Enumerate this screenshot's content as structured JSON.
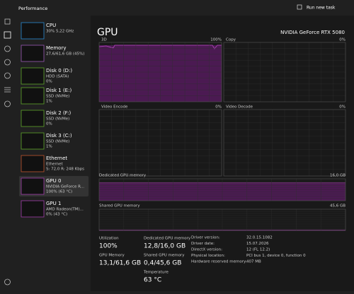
{
  "header": {
    "title": "Performance",
    "action": "Run new task"
  },
  "sidebar": [
    {
      "name": "CPU",
      "line1": "30% 5,22 GHz",
      "line2": null
    },
    {
      "name": "Memory",
      "line1": "27,6/61,6 GB (45%)",
      "line2": null
    },
    {
      "name": "Disk 0 (D:)",
      "line1": "HDD (SATA)",
      "line2": "0%"
    },
    {
      "name": "Disk 1 (E:)",
      "line1": "SSD (NVMe)",
      "line2": "1%"
    },
    {
      "name": "Disk 2 (F:)",
      "line1": "SSD (NVMe)",
      "line2": "0%"
    },
    {
      "name": "Disk 3 (C:)",
      "line1": "SSD (NVMe)",
      "line2": "1%"
    },
    {
      "name": "Ethernet",
      "line1": "Ethernet",
      "line2": "S: 72,0 R: 248 Kbps"
    },
    {
      "name": "GPU 0",
      "line1": "NVIDIA GeForce R...",
      "line2": "100% (63 °C)"
    },
    {
      "name": "GPU 1",
      "line1": "AMD Radeon(TM)...",
      "line2": "0% (43 °C)"
    }
  ],
  "main": {
    "title": "GPU",
    "device": "NVIDIA GeForce RTX 5080",
    "graphs": [
      {
        "label": "3D",
        "max": "100%"
      },
      {
        "label": "Copy",
        "max": "0%"
      },
      {
        "label": "Video Encode",
        "max": "0%"
      },
      {
        "label": "Video Decode",
        "max": "0%"
      }
    ],
    "dedicated": {
      "label": "Dedicated GPU memory",
      "max": "16,0 GB"
    },
    "shared": {
      "label": "Shared GPU memory",
      "max": "45,6 GB"
    },
    "stats": [
      {
        "label": "Utilization",
        "value": "100%"
      },
      {
        "label": "GPU Memory",
        "value": "13,1/61,6 GB"
      },
      {
        "label": "Dedicated GPU memory",
        "value": "12,8/16,0 GB"
      },
      {
        "label": "Shared GPU memory",
        "value": "0,4/45,6 GB"
      },
      {
        "label": "Temperature",
        "value": "63 °C"
      }
    ],
    "details": [
      {
        "key": "Driver version:",
        "value": "32.0.15.1082"
      },
      {
        "key": "Driver date:",
        "value": "15.07.2026"
      },
      {
        "key": "DirectX version:",
        "value": "12 (FL 12.2)"
      },
      {
        "key": "Physical location:",
        "value": "PCI bus 1, device 0, function 0"
      },
      {
        "key": "Hardware reserved memory:",
        "value": "407 MB"
      }
    ]
  }
}
